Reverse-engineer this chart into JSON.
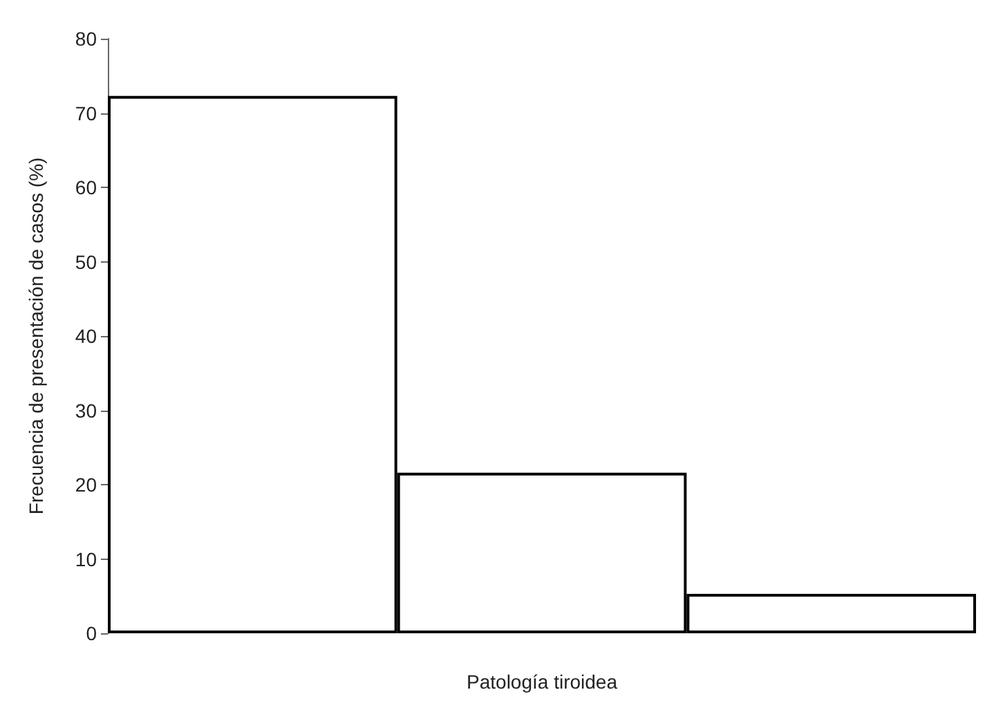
{
  "chart_data": {
    "type": "bar",
    "xlabel": "Patología tiroidea",
    "ylabel": "Frecuencia de presentación de casos (%)",
    "categories": [
      null,
      null,
      null
    ],
    "values": [
      72.3,
      21.6,
      5.3
    ],
    "colors": [
      "#ffffff",
      "#ffffff",
      "#ffffff"
    ],
    "ylim": [
      0,
      80
    ],
    "yticks": [
      0,
      10,
      20,
      30,
      40,
      50,
      60,
      70,
      80
    ]
  }
}
